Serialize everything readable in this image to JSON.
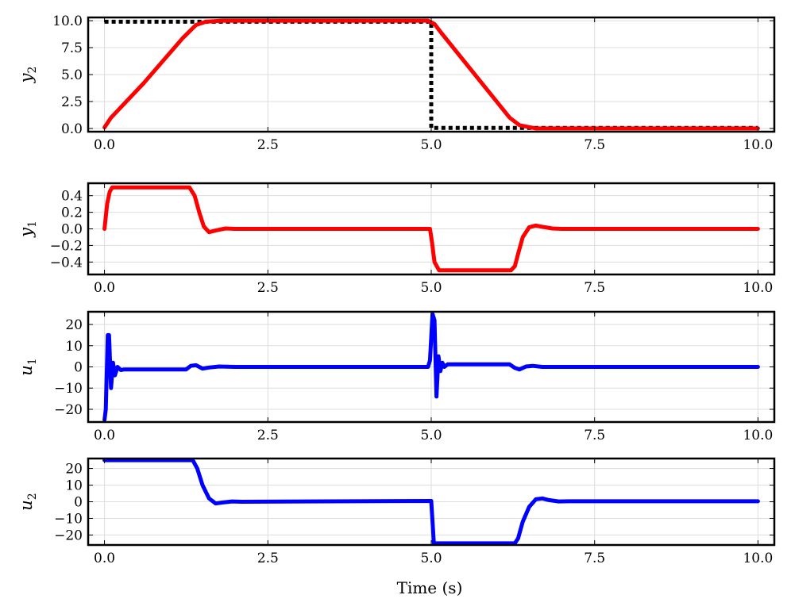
{
  "figure": {
    "xlabel": "Time (s)"
  },
  "chart_data": [
    {
      "type": "line",
      "name_label": "y",
      "name_sub": "2",
      "xlim": [
        -0.25,
        10.25
      ],
      "ylim": [
        -0.3,
        10.3
      ],
      "xticks": [
        0,
        2.5,
        5,
        7.5,
        10
      ],
      "xtick_labels": [
        "0.0",
        "2.5",
        "5.0",
        "7.5",
        "10.0"
      ],
      "yticks": [
        0,
        2.5,
        5,
        7.5,
        10
      ],
      "ytick_labels": [
        "0.0",
        "2.5",
        "5.0",
        "7.5",
        "10.0"
      ],
      "grid": true,
      "series": [
        {
          "role": "reference",
          "color": "#000000",
          "style": "dotted",
          "x": [
            0,
            0.0,
            5.0,
            5.0,
            10.0
          ],
          "y": [
            9.9,
            9.9,
            9.9,
            0.05,
            0.05
          ]
        },
        {
          "role": "response",
          "color": "#ff0000",
          "style": "solid",
          "x": [
            0,
            0.1,
            0.6,
            1.2,
            1.4,
            1.55,
            1.8,
            4.95,
            5.05,
            5.15,
            6.2,
            6.35,
            6.6,
            6.9,
            10.0
          ],
          "y": [
            0.1,
            1.0,
            4.2,
            8.4,
            9.6,
            9.9,
            10.0,
            10.0,
            9.7,
            8.9,
            1.0,
            0.3,
            0.0,
            0.0,
            0.0
          ]
        }
      ]
    },
    {
      "type": "line",
      "name_label": "y",
      "name_sub": "1",
      "xlim": [
        -0.25,
        10.25
      ],
      "ylim": [
        -0.55,
        0.55
      ],
      "xticks": [
        0,
        2.5,
        5,
        7.5,
        10
      ],
      "xtick_labels": [
        "0.0",
        "2.5",
        "5.0",
        "7.5",
        "10.0"
      ],
      "yticks": [
        -0.4,
        -0.2,
        0.0,
        0.2,
        0.4
      ],
      "ytick_labels": [
        "−0.4",
        "−0.2",
        "0.0",
        "0.2",
        "0.4"
      ],
      "grid": true,
      "series": [
        {
          "role": "response",
          "color": "#ff0000",
          "style": "solid",
          "x": [
            0,
            0.04,
            0.08,
            0.12,
            1.3,
            1.38,
            1.45,
            1.52,
            1.6,
            1.7,
            1.85,
            2.0,
            4.98,
            5.01,
            5.05,
            5.12,
            6.22,
            6.28,
            6.33,
            6.4,
            6.5,
            6.6,
            6.7,
            6.85,
            7.0,
            10.0
          ],
          "y": [
            0,
            0.3,
            0.45,
            0.5,
            0.5,
            0.4,
            0.2,
            0.03,
            -0.04,
            -0.02,
            0.005,
            0,
            0,
            -0.15,
            -0.4,
            -0.5,
            -0.5,
            -0.45,
            -0.3,
            -0.1,
            0.02,
            0.04,
            0.025,
            0.005,
            0,
            0
          ]
        }
      ]
    },
    {
      "type": "line",
      "name_label": "u",
      "name_sub": "1",
      "xlim": [
        -0.25,
        10.25
      ],
      "ylim": [
        -26,
        26
      ],
      "xticks": [
        0,
        2.5,
        5,
        7.5,
        10
      ],
      "xtick_labels": [
        "0.0",
        "2.5",
        "5.0",
        "7.5",
        "10.0"
      ],
      "yticks": [
        -20,
        -10,
        0,
        10,
        20
      ],
      "ytick_labels": [
        "−20",
        "−10",
        "0",
        "10",
        "20"
      ],
      "grid": true,
      "series": [
        {
          "role": "input",
          "color": "#0000ff",
          "style": "solid",
          "x": [
            0,
            0.02,
            0.05,
            0.07,
            0.1,
            0.13,
            0.16,
            0.2,
            0.25,
            0.3,
            1.25,
            1.32,
            1.4,
            1.5,
            1.6,
            1.75,
            2.0,
            4.95,
            4.98,
            5.02,
            5.05,
            5.08,
            5.11,
            5.14,
            5.17,
            5.2,
            5.25,
            5.3,
            6.2,
            6.28,
            6.35,
            6.45,
            6.55,
            6.7,
            7.0,
            10.0
          ],
          "y": [
            -25,
            -20,
            15,
            15,
            -10,
            2,
            -4,
            0,
            -1.5,
            -1.2,
            -1.2,
            0.5,
            0.8,
            -0.8,
            -0.3,
            0.2,
            0,
            0,
            3,
            25,
            22,
            -14,
            5,
            -2,
            2,
            0,
            1.2,
            1.2,
            1.2,
            -0.5,
            -1.2,
            0.2,
            0.5,
            0,
            0,
            0
          ]
        }
      ]
    },
    {
      "type": "line",
      "name_label": "u",
      "name_sub": "2",
      "xlim": [
        -0.25,
        10.25
      ],
      "ylim": [
        -26,
        26
      ],
      "xticks": [
        0,
        2.5,
        5,
        7.5,
        10
      ],
      "xtick_labels": [
        "0.0",
        "2.5",
        "5.0",
        "7.5",
        "10.0"
      ],
      "yticks": [
        -20,
        -10,
        0,
        10,
        20
      ],
      "ytick_labels": [
        "−20",
        "−10",
        "0",
        "10",
        "20"
      ],
      "grid": true,
      "series": [
        {
          "role": "input",
          "color": "#0000ff",
          "style": "solid",
          "x": [
            0,
            1.35,
            1.42,
            1.5,
            1.6,
            1.7,
            1.8,
            1.95,
            2.1,
            4.98,
            5.0,
            5.04,
            6.28,
            6.33,
            6.4,
            6.5,
            6.6,
            6.7,
            6.8,
            6.95,
            7.1,
            10.0
          ],
          "y": [
            25,
            25,
            20,
            10,
            2,
            -1,
            -0.5,
            0.2,
            0,
            0.5,
            0.5,
            -25,
            -25,
            -22,
            -12,
            -3,
            1.5,
            2,
            1,
            0.2,
            0.3,
            0.3
          ]
        }
      ]
    }
  ]
}
